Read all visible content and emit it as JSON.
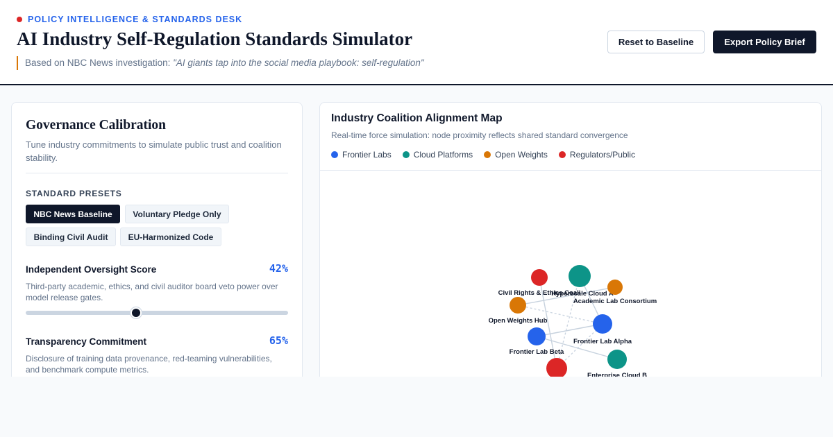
{
  "header": {
    "kicker": "POLICY INTELLIGENCE & STANDARDS DESK",
    "title": "AI Industry Self-Regulation Standards Simulator",
    "source_prefix": "Based on NBC News investigation:",
    "source_quote": "\"AI giants tap into the social media playbook: self-regulation\"",
    "reset_label": "Reset to Baseline",
    "export_label": "Export Policy Brief"
  },
  "governance": {
    "title": "Governance Calibration",
    "description": "Tune industry commitments to simulate public trust and coalition stability.",
    "presets_label": "STANDARD PRESETS",
    "presets": [
      {
        "label": "NBC News Baseline",
        "active": true
      },
      {
        "label": "Voluntary Pledge Only",
        "active": false
      },
      {
        "label": "Binding Civil Audit",
        "active": false
      },
      {
        "label": "EU-Harmonized Code",
        "active": false
      }
    ],
    "params": [
      {
        "label": "Independent Oversight Score",
        "value_text": "42%",
        "value": 42,
        "description": "Third-party academic, ethics, and civil auditor board veto power over model release gates."
      },
      {
        "label": "Transparency Commitment",
        "value_text": "65%",
        "value": 65,
        "description": "Disclosure of training data provenance, red-teaming vulnerabilities, and benchmark compute metrics."
      }
    ]
  },
  "map": {
    "title": "Industry Coalition Alignment Map",
    "subtitle": "Real-time force simulation: node proximity reflects shared standard convergence",
    "legend": [
      {
        "label": "Frontier Labs",
        "color": "#2563eb"
      },
      {
        "label": "Cloud Platforms",
        "color": "#0d9488"
      },
      {
        "label": "Open Weights",
        "color": "#d97706"
      },
      {
        "label": "Regulators/Public",
        "color": "#dc2626"
      }
    ],
    "nodes": [
      {
        "id": "civil",
        "label": "Civil Rights & Ethics Coali",
        "group": "Regulators/Public",
        "color": "#dc2626"
      },
      {
        "id": "cloudA",
        "label": "Hyperscale Cloud A",
        "group": "Cloud Platforms",
        "color": "#0d9488"
      },
      {
        "id": "academic",
        "label": "Academic Lab Consortium",
        "group": "Open Weights",
        "color": "#d97706"
      },
      {
        "id": "openweights",
        "label": "Open Weights Hub",
        "group": "Open Weights",
        "color": "#d97706"
      },
      {
        "id": "alpha",
        "label": "Frontier Lab Alpha",
        "group": "Frontier Labs",
        "color": "#2563eb"
      },
      {
        "id": "beta",
        "label": "Frontier Lab Beta",
        "group": "Frontier Labs",
        "color": "#2563eb"
      },
      {
        "id": "cloudB",
        "label": "Enterprise Cloud B",
        "group": "Cloud Platforms",
        "color": "#0d9488"
      },
      {
        "id": "regulator",
        "label": "",
        "group": "Regulators/Public",
        "color": "#dc2626"
      }
    ],
    "links": [
      {
        "source": "openweights",
        "target": "academic",
        "dashed": false
      },
      {
        "source": "openweights",
        "target": "alpha",
        "dashed": true
      },
      {
        "source": "beta",
        "target": "alpha",
        "dashed": false
      },
      {
        "source": "beta",
        "target": "cloudB",
        "dashed": false
      },
      {
        "source": "civil",
        "target": "regulator",
        "dashed": false
      },
      {
        "source": "cloudA",
        "target": "alpha",
        "dashed": false
      },
      {
        "source": "cloudA",
        "target": "regulator",
        "dashed": true
      },
      {
        "source": "alpha",
        "target": "regulator",
        "dashed": true
      }
    ]
  }
}
